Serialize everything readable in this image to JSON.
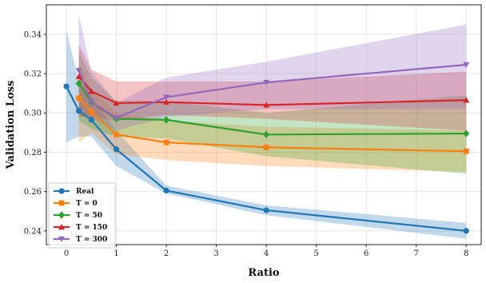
{
  "chart_data": {
    "type": "line",
    "xlabel": "Ratio",
    "ylabel": "Validation Loss",
    "xlim": [
      -0.4,
      8.3
    ],
    "ylim": [
      0.233,
      0.355
    ],
    "xticks": [
      0,
      1,
      2,
      3,
      4,
      5,
      6,
      7,
      8
    ],
    "yticks": [
      0.24,
      0.26,
      0.28,
      0.3,
      0.32,
      0.34
    ],
    "ytick_labels": [
      "0.24",
      "0.26",
      "0.28",
      "0.30",
      "0.32",
      "0.34"
    ],
    "grid": true,
    "legend_position": "lower-left",
    "series": [
      {
        "name": "Real",
        "color": "#1f77b4",
        "marker": "circle",
        "x": [
          0,
          0.25,
          0.5,
          1,
          2,
          4,
          8
        ],
        "values": [
          0.3135,
          0.301,
          0.2965,
          0.2815,
          0.2605,
          0.2505,
          0.24
        ],
        "lower": [
          0.285,
          0.288,
          0.288,
          0.273,
          0.259,
          0.248,
          0.236
        ],
        "upper": [
          0.342,
          0.316,
          0.308,
          0.291,
          0.263,
          0.253,
          0.244
        ]
      },
      {
        "name": "T = 0",
        "color": "#ff7f0e",
        "marker": "square",
        "x": [
          0.25,
          0.5,
          1,
          2,
          4,
          8
        ],
        "values": [
          0.3075,
          0.3005,
          0.289,
          0.285,
          0.2825,
          0.2805
        ],
        "lower": [
          0.285,
          0.29,
          0.279,
          0.276,
          0.273,
          0.27
        ],
        "upper": [
          0.325,
          0.312,
          0.3,
          0.296,
          0.293,
          0.291
        ]
      },
      {
        "name": "T = 50",
        "color": "#2ca02c",
        "marker": "diamond",
        "x": [
          0.25,
          0.5,
          1,
          2,
          4,
          8
        ],
        "values": [
          0.315,
          0.3055,
          0.297,
          0.2965,
          0.289,
          0.2895
        ],
        "lower": [
          0.296,
          0.292,
          0.288,
          0.287,
          0.278,
          0.269
        ],
        "upper": [
          0.331,
          0.318,
          0.306,
          0.306,
          0.3,
          0.309
        ]
      },
      {
        "name": "T = 150",
        "color": "#d62728",
        "marker": "triangle-up",
        "x": [
          0.25,
          0.5,
          1,
          2,
          4,
          8
        ],
        "values": [
          0.3185,
          0.311,
          0.305,
          0.3055,
          0.304,
          0.3065
        ],
        "lower": [
          0.298,
          0.298,
          0.296,
          0.299,
          0.297,
          0.291
        ],
        "upper": [
          0.335,
          0.322,
          0.316,
          0.316,
          0.316,
          0.321
        ]
      },
      {
        "name": "T = 300",
        "color": "#9467bd",
        "marker": "triangle-down",
        "x": [
          0.25,
          0.5,
          1,
          2,
          4,
          8
        ],
        "values": [
          0.3215,
          0.3055,
          0.2975,
          0.308,
          0.3155,
          0.3245
        ],
        "lower": [
          0.3,
          0.297,
          0.291,
          0.298,
          0.302,
          0.302
        ],
        "upper": [
          0.35,
          0.321,
          0.305,
          0.318,
          0.326,
          0.345
        ]
      }
    ]
  }
}
